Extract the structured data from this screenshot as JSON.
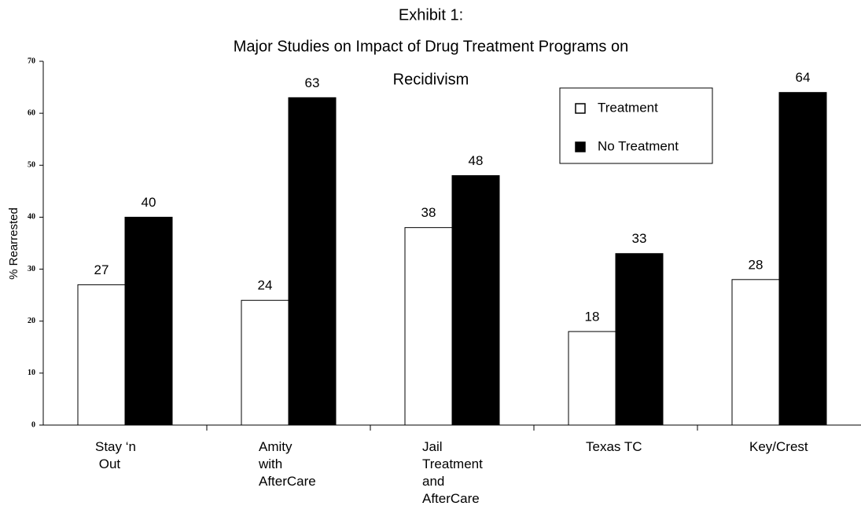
{
  "chart_data": {
    "type": "bar",
    "title": [
      "Exhibit 1:",
      "Major Studies on Impact of Drug Treatment Programs on",
      "Recidivism"
    ],
    "y_label": "% Rearrested",
    "categories": [
      "Stay ‘n\n Out",
      "Amity\nwith\nAfterCare",
      "Jail\nTreatment\nand\nAfterCare",
      "Texas TC",
      "Key/Crest"
    ],
    "series": [
      {
        "name": "Treatment",
        "color": "#ffffff",
        "values": [
          27,
          24,
          38,
          18,
          28
        ]
      },
      {
        "name": "No Treatment",
        "color": "#000000",
        "values": [
          40,
          63,
          48,
          33,
          64
        ]
      }
    ],
    "ylim": [
      0,
      70
    ],
    "yticks": [
      0,
      10,
      20,
      30,
      40,
      50,
      60,
      70
    ],
    "legend": "upper right"
  }
}
